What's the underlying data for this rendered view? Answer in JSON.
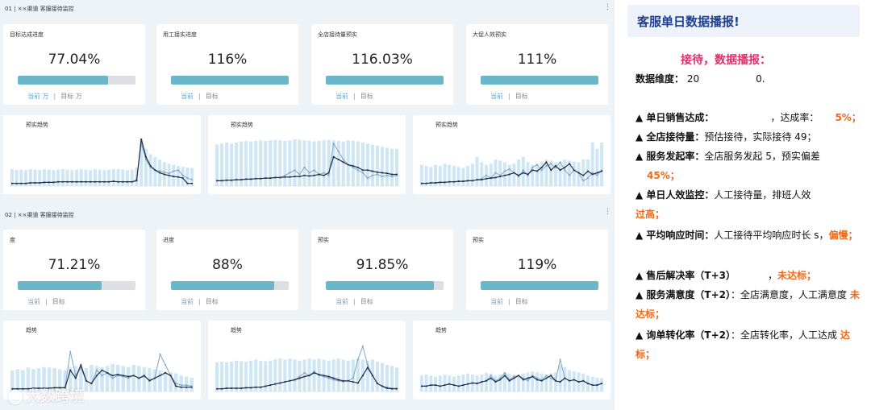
{
  "colors": {
    "accent": "#6bb6c9",
    "bar_light": "#cfe6f5",
    "line_dark": "#1f2a44",
    "line_light": "#7ea6c4",
    "warn": "#f06a1a",
    "pink": "#e0306a",
    "header_blue": "#1f3f8f"
  },
  "section1": {
    "title": "01 | ××渠道 客服接待监控"
  },
  "section2": {
    "title": "02 | ××渠道 客服接待监控"
  },
  "kpis1": [
    {
      "label": "目标达成进度",
      "value": "77.04%",
      "progress": 0.77,
      "current": "当前",
      "unit1": "万",
      "target": "目标",
      "unit2": "万"
    },
    {
      "label": "用工接实进度",
      "value": "116%",
      "progress": 1.0,
      "current": "当前",
      "target": "目标"
    },
    {
      "label": "全店接待量预实",
      "value": "116.03%",
      "progress": 1.0,
      "current": "当前",
      "target": "目标"
    },
    {
      "label": "大促人效预实",
      "value": "111%",
      "progress": 1.0,
      "current": "当前",
      "target": "目标"
    }
  ],
  "kpis2": [
    {
      "label": "度",
      "value": "71.21%",
      "progress": 0.71,
      "current": "当前",
      "target": "目标"
    },
    {
      "label": "进度",
      "value": "88%",
      "progress": 0.88,
      "current": "当前",
      "target": "目标"
    },
    {
      "label": "预实",
      "value": "91.85%",
      "progress": 0.92,
      "current": "当前",
      "target": "目标"
    },
    {
      "label": "预实",
      "value": "119%",
      "progress": 1.0,
      "current": "当前",
      "target": "目标"
    }
  ],
  "charts1": [
    {
      "label": "预实趋势"
    },
    {
      "label": "预实趋势"
    },
    {
      "label": "预实趋势"
    }
  ],
  "charts2": [
    {
      "label": "趋势"
    },
    {
      "label": "趋势"
    },
    {
      "label": "趋势"
    }
  ],
  "watermark": "大数跨境",
  "report": {
    "header": "客服单日数据播报!",
    "greeting": "接待，数据播报：",
    "dimension_label": "数据维度：",
    "dimension_value": "20",
    "dimension_tail": "0.",
    "lines": [
      {
        "title": "▲ 单日销售达成：",
        "body": "，达成率：",
        "highlight": "5%；"
      },
      {
        "title": "▲ 全店接待量：",
        "body": "预估接待，实际接待",
        "tail": "49；"
      },
      {
        "title": "▲ 服务发起率：",
        "body": "全店服务发起",
        "tail": "5，预实偏差",
        "highlight": "45%；"
      },
      {
        "title": "▲ 单日人效监控：",
        "body": "人工接待量，排班人效",
        "highlight": "过高；"
      },
      {
        "title": "▲ 平均响应时间：",
        "body": "人工接待平均响应时长",
        "tail": "s，",
        "highlight": "偏慢；"
      },
      {
        "title": "▲ 售后解决率（T+3）",
        "body": "，",
        "highlight": "未达标；"
      },
      {
        "title": "▲ 服务满意度（T+2）",
        "body": "：全店满意度，人工满意度",
        "highlight": "未达标；"
      },
      {
        "title": "▲ 询单转化率（T+2）",
        "body": "：全店转化率，人工达成",
        "highlight": "达标；"
      }
    ]
  },
  "chart_data": [
    {
      "type": "bar",
      "title": "预实趋势",
      "bars": [
        0.32,
        0.3,
        0.31,
        0.3,
        0.32,
        0.31,
        0.3,
        0.32,
        0.31,
        0.3,
        0.31,
        0.32,
        0.31,
        0.3,
        0.31,
        0.32,
        0.31,
        0.3,
        0.32,
        0.31,
        0.3,
        0.31,
        0.32,
        0.32,
        0.31,
        0.3,
        0.31,
        0.35,
        0.9,
        0.7,
        0.6,
        0.55,
        0.5,
        0.45,
        0.42,
        0.4,
        0.38,
        0.36,
        0.35,
        0.34
      ],
      "line_a": [
        0.05,
        0.05,
        0.05,
        0.05,
        0.06,
        0.06,
        0.06,
        0.07,
        0.07,
        0.07,
        0.08,
        0.08,
        0.08,
        0.08,
        0.08,
        0.08,
        0.08,
        0.08,
        0.08,
        0.08,
        0.08,
        0.08,
        0.09,
        0.08,
        0.08,
        0.08,
        0.08,
        0.1,
        0.88,
        0.55,
        0.38,
        0.3,
        0.25,
        0.22,
        0.2,
        0.18,
        0.17,
        0.15,
        0.05,
        0.05
      ],
      "line_b": [
        0.05,
        0.05,
        0.05,
        0.05,
        0.06,
        0.06,
        0.06,
        0.07,
        0.07,
        0.07,
        0.08,
        0.08,
        0.08,
        0.08,
        0.08,
        0.08,
        0.08,
        0.08,
        0.08,
        0.08,
        0.08,
        0.08,
        0.09,
        0.08,
        0.08,
        0.08,
        0.08,
        0.12,
        0.8,
        0.5,
        0.35,
        0.3,
        0.28,
        0.26,
        0.24,
        0.28,
        0.3,
        0.2,
        0.15,
        0.12
      ]
    },
    {
      "type": "bar",
      "title": "预实趋势",
      "bars": [
        0.78,
        0.8,
        0.82,
        0.8,
        0.82,
        0.84,
        0.85,
        0.84,
        0.85,
        0.86,
        0.85,
        0.86,
        0.87,
        0.86,
        0.85,
        0.86,
        0.88,
        0.87,
        0.86,
        0.85,
        0.84,
        0.85,
        0.86,
        0.87,
        0.86,
        0.85,
        0.84,
        0.86,
        0.85,
        0.84,
        0.82,
        0.8,
        0.78,
        0.76,
        0.74,
        0.72,
        0.7,
        0.7
      ],
      "line_a": [
        0.1,
        0.1,
        0.11,
        0.11,
        0.12,
        0.12,
        0.13,
        0.13,
        0.14,
        0.14,
        0.15,
        0.15,
        0.16,
        0.16,
        0.17,
        0.17,
        0.18,
        0.18,
        0.2,
        0.19,
        0.2,
        0.22,
        0.2,
        0.25,
        0.55,
        0.5,
        0.45,
        0.4,
        0.38,
        0.35,
        0.3,
        0.3,
        0.28,
        0.26,
        0.25,
        0.24,
        0.22,
        0.22
      ],
      "line_b": [
        0.1,
        0.1,
        0.11,
        0.11,
        0.12,
        0.12,
        0.13,
        0.13,
        0.14,
        0.14,
        0.15,
        0.15,
        0.16,
        0.16,
        0.2,
        0.25,
        0.3,
        0.22,
        0.35,
        0.25,
        0.3,
        0.22,
        0.25,
        0.2,
        0.8,
        0.65,
        0.5,
        0.4,
        0.35,
        0.3,
        0.25,
        0.15,
        0.2,
        0.22,
        0.18,
        0.2,
        0.18,
        0.2
      ]
    },
    {
      "type": "bar",
      "title": "预实趋势",
      "bars": [
        0.4,
        0.38,
        0.36,
        0.4,
        0.38,
        0.42,
        0.4,
        0.38,
        0.36,
        0.34,
        0.38,
        0.42,
        0.55,
        0.45,
        0.4,
        0.42,
        0.5,
        0.48,
        0.45,
        0.4,
        0.42,
        0.5,
        0.55,
        0.45,
        0.4,
        0.42,
        0.46,
        0.5,
        0.48,
        0.44,
        0.45,
        0.5,
        0.48,
        0.46,
        0.45,
        0.5,
        0.5,
        0.82,
        0.7,
        0.82
      ],
      "line_a": [
        0.05,
        0.05,
        0.06,
        0.06,
        0.07,
        0.07,
        0.08,
        0.08,
        0.09,
        0.09,
        0.1,
        0.1,
        0.12,
        0.12,
        0.14,
        0.15,
        0.16,
        0.18,
        0.2,
        0.22,
        0.25,
        0.2,
        0.25,
        0.22,
        0.3,
        0.28,
        0.35,
        0.45,
        0.3,
        0.38,
        0.3,
        0.35,
        0.42,
        0.3,
        0.25,
        0.2,
        0.28,
        0.22,
        0.25,
        0.28
      ],
      "line_b": [
        0.05,
        0.05,
        0.06,
        0.06,
        0.07,
        0.07,
        0.08,
        0.08,
        0.09,
        0.09,
        0.1,
        0.1,
        0.12,
        0.14,
        0.2,
        0.15,
        0.25,
        0.2,
        0.28,
        0.32,
        0.25,
        0.18,
        0.3,
        0.2,
        0.35,
        0.4,
        0.3,
        0.38,
        0.42,
        0.35,
        0.45,
        0.3,
        0.2,
        0.3,
        0.25,
        0.1,
        0.15,
        0.25,
        0.2,
        0.3
      ]
    },
    {
      "type": "bar",
      "title": "趋势",
      "bars": [
        0.4,
        0.42,
        0.4,
        0.45,
        0.42,
        0.44,
        0.46,
        0.45,
        0.44,
        0.42,
        0.4,
        0.46,
        0.48,
        0.45,
        0.44,
        0.5,
        0.48,
        0.46,
        0.48,
        0.52,
        0.5,
        0.48,
        0.46,
        0.5,
        0.48,
        0.46,
        0.44,
        0.42,
        0.4,
        0.38,
        0.36,
        0.34,
        0.3,
        0.28,
        0.26
      ],
      "line_a": [
        0.05,
        0.05,
        0.05,
        0.05,
        0.06,
        0.06,
        0.06,
        0.06,
        0.07,
        0.07,
        0.07,
        0.4,
        0.25,
        0.5,
        0.2,
        0.15,
        0.3,
        0.4,
        0.35,
        0.3,
        0.32,
        0.3,
        0.28,
        0.3,
        0.25,
        0.3,
        0.2,
        0.25,
        0.3,
        0.35,
        0.3,
        0.1,
        0.08,
        0.08,
        0.08
      ],
      "line_b": [
        0.05,
        0.05,
        0.05,
        0.05,
        0.06,
        0.06,
        0.06,
        0.06,
        0.07,
        0.07,
        0.07,
        0.75,
        0.3,
        0.45,
        0.2,
        0.15,
        0.4,
        0.3,
        0.35,
        0.25,
        0.3,
        0.28,
        0.25,
        0.3,
        0.25,
        0.28,
        0.22,
        0.25,
        0.7,
        0.5,
        0.3,
        0.15,
        0.12,
        0.12,
        0.1
      ]
    },
    {
      "type": "bar",
      "title": "趋势",
      "bars": [
        0.55,
        0.56,
        0.55,
        0.56,
        0.58,
        0.57,
        0.56,
        0.58,
        0.6,
        0.58,
        0.57,
        0.58,
        0.6,
        0.62,
        0.6,
        0.62,
        0.6,
        0.58,
        0.6,
        0.62,
        0.6,
        0.62,
        0.6,
        0.58,
        0.6,
        0.62,
        0.6,
        0.58,
        0.6,
        0.62,
        0.6,
        0.58,
        0.6,
        0.56,
        0.54,
        0.5,
        0.48,
        0.45
      ],
      "line_a": [
        0.05,
        0.05,
        0.06,
        0.06,
        0.06,
        0.06,
        0.07,
        0.07,
        0.08,
        0.08,
        0.1,
        0.12,
        0.14,
        0.16,
        0.18,
        0.2,
        0.22,
        0.25,
        0.28,
        0.3,
        0.35,
        0.32,
        0.3,
        0.28,
        0.25,
        0.22,
        0.2,
        0.2,
        0.18,
        0.16,
        0.3,
        0.45,
        0.3,
        0.15,
        0.1,
        0.06,
        0.05,
        0.05
      ],
      "line_b": [
        0.05,
        0.05,
        0.06,
        0.06,
        0.06,
        0.06,
        0.07,
        0.07,
        0.08,
        0.08,
        0.1,
        0.12,
        0.14,
        0.16,
        0.18,
        0.2,
        0.22,
        0.28,
        0.35,
        0.3,
        0.38,
        0.3,
        0.28,
        0.25,
        0.22,
        0.2,
        0.18,
        0.2,
        0.25,
        0.6,
        0.85,
        0.5,
        0.3,
        0.15,
        0.1,
        0.08,
        0.06,
        0.06
      ]
    },
    {
      "type": "bar",
      "title": "趋势",
      "bars": [
        0.3,
        0.32,
        0.3,
        0.28,
        0.3,
        0.32,
        0.3,
        0.28,
        0.3,
        0.32,
        0.34,
        0.32,
        0.3,
        0.32,
        0.35,
        0.34,
        0.3,
        0.32,
        0.36,
        0.34,
        0.32,
        0.3,
        0.34,
        0.36,
        0.38,
        0.36,
        0.34,
        0.32,
        0.34,
        0.36,
        0.5,
        0.46,
        0.4,
        0.38,
        0.36,
        0.34,
        0.3,
        0.28,
        0.26,
        0.25
      ],
      "line_a": [
        0.1,
        0.1,
        0.12,
        0.12,
        0.1,
        0.12,
        0.14,
        0.12,
        0.1,
        0.12,
        0.14,
        0.16,
        0.15,
        0.18,
        0.2,
        0.25,
        0.18,
        0.22,
        0.3,
        0.2,
        0.25,
        0.3,
        0.22,
        0.25,
        0.28,
        0.22,
        0.2,
        0.25,
        0.3,
        0.2,
        0.18,
        0.25,
        0.2,
        0.22,
        0.18,
        0.2,
        0.15,
        0.12,
        0.12,
        0.15
      ],
      "line_b": [
        0.1,
        0.1,
        0.12,
        0.12,
        0.1,
        0.12,
        0.14,
        0.12,
        0.1,
        0.12,
        0.14,
        0.16,
        0.15,
        0.18,
        0.2,
        0.3,
        0.2,
        0.25,
        0.35,
        0.22,
        0.28,
        0.3,
        0.25,
        0.2,
        0.3,
        0.25,
        0.22,
        0.3,
        0.25,
        0.2,
        0.6,
        0.25,
        0.2,
        0.22,
        0.18,
        0.2,
        0.15,
        0.12,
        0.12,
        0.15
      ]
    }
  ]
}
